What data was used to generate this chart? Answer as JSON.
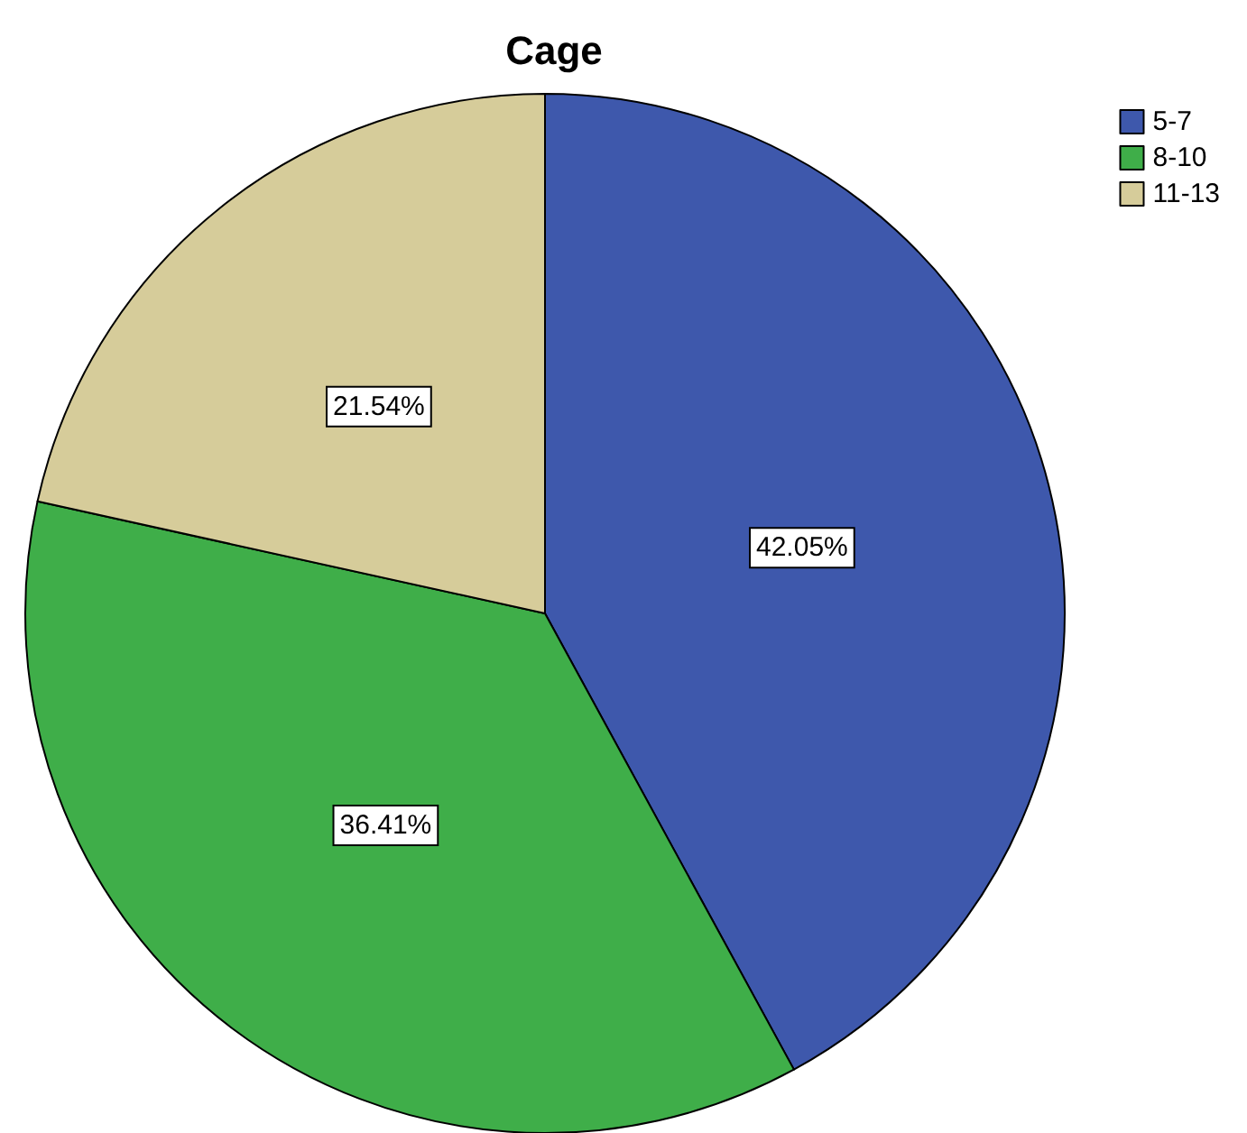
{
  "chart_data": {
    "type": "pie",
    "title": "Cage",
    "categories": [
      "5-7",
      "8-10",
      "11-13"
    ],
    "values": [
      42.05,
      36.41,
      21.54
    ],
    "colors": [
      "#3e58ac",
      "#3fae49",
      "#d6cc9a"
    ],
    "value_labels": [
      "42.05%",
      "36.41%",
      "21.54%"
    ],
    "legend": "top right"
  }
}
